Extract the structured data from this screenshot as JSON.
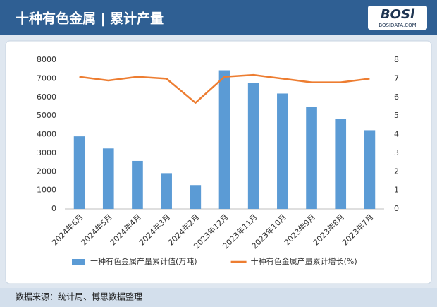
{
  "logo": {
    "text": "BOSi",
    "subtext": "BOSIDATA.COM"
  },
  "chart_data": {
    "type": "bar",
    "title": "十种有色金属 | 累计产量",
    "source": "数据来源：统计局、博思数据整理",
    "categories": [
      "2024年6月",
      "2024年5月",
      "2024年4月",
      "2024年3月",
      "2024年2月",
      "2023年12月",
      "2023年11月",
      "2023年10月",
      "2023年9月",
      "2023年8月",
      "2023年7月"
    ],
    "series": [
      {
        "name": "十种有色金属产量累计值(万吨)",
        "type": "bar",
        "color": "#5b9bd5",
        "values": [
          3900,
          3250,
          2580,
          1920,
          1280,
          7450,
          6780,
          6200,
          5480,
          4830,
          4230
        ]
      },
      {
        "name": "十种有色金属产量累计增长(%)",
        "type": "line",
        "axis": "y2",
        "color": "#ed7d31",
        "values": [
          7.1,
          6.9,
          7.1,
          7.0,
          5.7,
          7.1,
          7.2,
          7.0,
          6.8,
          6.8,
          7.0
        ]
      }
    ],
    "ylim": [
      0,
      8000
    ],
    "yticks": [
      0,
      1000,
      2000,
      3000,
      4000,
      5000,
      6000,
      7000,
      8000
    ],
    "y2lim": [
      0,
      8
    ],
    "y2ticks": [
      0,
      1,
      2,
      3,
      4,
      5,
      6,
      7,
      8
    ],
    "legend": "bottom"
  }
}
